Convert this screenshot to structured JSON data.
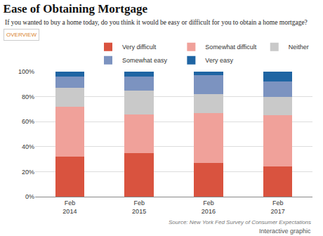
{
  "chart_data": {
    "type": "bar",
    "title": "Ease of Obtaining Mortgage",
    "subtitle": "If you wanted to buy a home today, do you think it would be easy or difficult for you to obtain a home mortgage?",
    "tab_label": "OVERVIEW",
    "source": "Source: New York Fed Survey of Consumer Expectations",
    "note": "Interactive graphic",
    "categories": [
      "Feb 2014",
      "Feb 2015",
      "Feb 2016",
      "Feb 2017"
    ],
    "series": [
      {
        "name": "Very difficult",
        "color": "#d9533f",
        "values": [
          32,
          35,
          27,
          24
        ]
      },
      {
        "name": "Somewhat difficult",
        "color": "#f0a19a",
        "values": [
          40,
          31,
          40,
          41
        ]
      },
      {
        "name": "Neither",
        "color": "#c9c9c9",
        "values": [
          15,
          19,
          15,
          15
        ]
      },
      {
        "name": "Somewhat easy",
        "color": "#7c93c0",
        "values": [
          9,
          11,
          15,
          12
        ]
      },
      {
        "name": "Very easy",
        "color": "#1f65a3",
        "values": [
          4,
          4,
          3,
          8
        ]
      }
    ],
    "ylim": [
      0,
      100
    ],
    "yticks": [
      {
        "value": 0,
        "label": "0%"
      },
      {
        "value": 20,
        "label": "20%"
      },
      {
        "value": 40,
        "label": "40%"
      },
      {
        "value": 60,
        "label": "60%"
      },
      {
        "value": 80,
        "label": "80%"
      },
      {
        "value": 100,
        "label": "100%"
      }
    ],
    "stacked": true,
    "grid": true,
    "legend": "top"
  }
}
